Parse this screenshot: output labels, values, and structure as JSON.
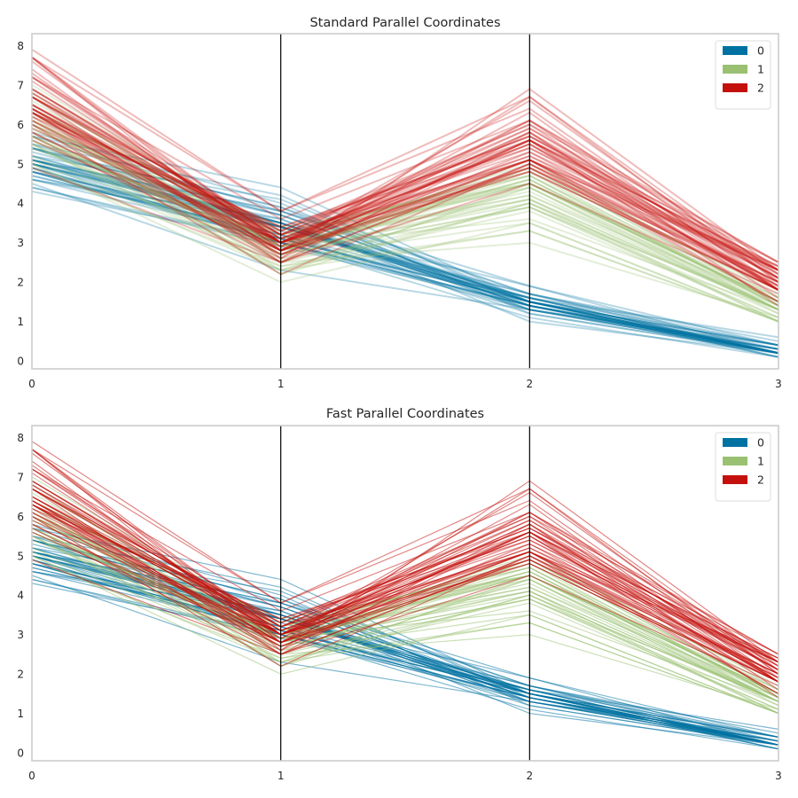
{
  "chart_data": [
    {
      "type": "parallel-coordinates",
      "title": "Standard Parallel Coordinates",
      "axes": [
        "0",
        "1",
        "2",
        "3"
      ],
      "ylim": [
        -0.2,
        8.3
      ],
      "yticks": [
        "0",
        "1",
        "2",
        "3",
        "4",
        "5",
        "6",
        "7",
        "8"
      ],
      "legend_position": "top-right",
      "line_alpha": 0.28,
      "series": [
        {
          "name": "0",
          "color": "#0072a1",
          "lines": [
            [
              5.1,
              3.5,
              1.4,
              0.2
            ],
            [
              4.9,
              3.0,
              1.4,
              0.2
            ],
            [
              4.7,
              3.2,
              1.3,
              0.2
            ],
            [
              4.6,
              3.1,
              1.5,
              0.2
            ],
            [
              5.0,
              3.6,
              1.4,
              0.2
            ],
            [
              5.4,
              3.9,
              1.7,
              0.4
            ],
            [
              4.6,
              3.4,
              1.4,
              0.3
            ],
            [
              5.0,
              3.4,
              1.5,
              0.2
            ],
            [
              4.4,
              2.9,
              1.4,
              0.2
            ],
            [
              4.9,
              3.1,
              1.5,
              0.1
            ],
            [
              5.4,
              3.7,
              1.5,
              0.2
            ],
            [
              4.8,
              3.4,
              1.6,
              0.2
            ],
            [
              4.8,
              3.0,
              1.4,
              0.1
            ],
            [
              4.3,
              3.0,
              1.1,
              0.1
            ],
            [
              5.8,
              4.0,
              1.2,
              0.2
            ],
            [
              5.7,
              4.4,
              1.5,
              0.4
            ],
            [
              5.4,
              3.9,
              1.3,
              0.4
            ],
            [
              5.1,
              3.5,
              1.4,
              0.3
            ],
            [
              5.7,
              3.8,
              1.7,
              0.3
            ],
            [
              5.1,
              3.8,
              1.5,
              0.3
            ],
            [
              5.4,
              3.4,
              1.7,
              0.2
            ],
            [
              5.1,
              3.7,
              1.5,
              0.4
            ],
            [
              4.6,
              3.6,
              1.0,
              0.2
            ],
            [
              5.1,
              3.3,
              1.7,
              0.5
            ],
            [
              4.8,
              3.4,
              1.9,
              0.2
            ],
            [
              5.0,
              3.0,
              1.6,
              0.2
            ],
            [
              5.0,
              3.4,
              1.6,
              0.4
            ],
            [
              5.2,
              3.5,
              1.5,
              0.2
            ],
            [
              5.2,
              3.4,
              1.4,
              0.2
            ],
            [
              4.7,
              3.2,
              1.6,
              0.2
            ],
            [
              4.8,
              3.1,
              1.6,
              0.2
            ],
            [
              5.4,
              3.4,
              1.5,
              0.4
            ],
            [
              5.2,
              4.1,
              1.5,
              0.1
            ],
            [
              5.5,
              4.2,
              1.4,
              0.2
            ],
            [
              4.9,
              3.1,
              1.5,
              0.2
            ],
            [
              5.0,
              3.2,
              1.2,
              0.2
            ],
            [
              5.5,
              3.5,
              1.3,
              0.2
            ],
            [
              4.4,
              3.0,
              1.3,
              0.2
            ],
            [
              5.1,
              3.4,
              1.5,
              0.2
            ],
            [
              5.0,
              3.5,
              1.3,
              0.3
            ],
            [
              4.5,
              2.3,
              1.3,
              0.3
            ],
            [
              5.0,
              3.5,
              1.6,
              0.6
            ],
            [
              5.1,
              3.8,
              1.9,
              0.4
            ],
            [
              4.8,
              3.0,
              1.4,
              0.3
            ],
            [
              5.3,
              3.7,
              1.5,
              0.2
            ]
          ]
        },
        {
          "name": "1",
          "color": "#9ac172",
          "lines": [
            [
              7.0,
              3.2,
              4.7,
              1.4
            ],
            [
              6.4,
              3.2,
              4.5,
              1.5
            ],
            [
              6.9,
              3.1,
              4.9,
              1.5
            ],
            [
              5.5,
              2.3,
              4.0,
              1.3
            ],
            [
              6.5,
              2.8,
              4.6,
              1.5
            ],
            [
              5.7,
              2.8,
              4.5,
              1.3
            ],
            [
              6.3,
              3.3,
              4.7,
              1.6
            ],
            [
              4.9,
              2.4,
              3.3,
              1.0
            ],
            [
              6.6,
              2.9,
              4.6,
              1.3
            ],
            [
              5.2,
              2.7,
              3.9,
              1.4
            ],
            [
              5.0,
              2.0,
              3.5,
              1.0
            ],
            [
              5.9,
              3.0,
              4.2,
              1.5
            ],
            [
              6.0,
              2.2,
              4.0,
              1.0
            ],
            [
              6.1,
              2.9,
              4.7,
              1.4
            ],
            [
              5.6,
              2.9,
              3.6,
              1.3
            ],
            [
              6.7,
              3.1,
              4.4,
              1.4
            ],
            [
              5.8,
              2.7,
              4.1,
              1.0
            ],
            [
              6.2,
              2.2,
              4.5,
              1.5
            ],
            [
              5.6,
              2.5,
              3.9,
              1.1
            ],
            [
              5.9,
              3.2,
              4.8,
              1.8
            ],
            [
              6.1,
              2.8,
              4.0,
              1.3
            ],
            [
              6.3,
              2.5,
              4.9,
              1.5
            ],
            [
              6.4,
              2.9,
              4.3,
              1.3
            ],
            [
              6.8,
              2.8,
              4.8,
              1.4
            ],
            [
              6.7,
              3.0,
              5.0,
              1.7
            ],
            [
              6.0,
              2.9,
              4.5,
              1.5
            ],
            [
              5.7,
              2.6,
              3.5,
              1.0
            ],
            [
              5.5,
              2.4,
              3.8,
              1.1
            ],
            [
              5.8,
              2.7,
              3.9,
              1.2
            ],
            [
              6.0,
              2.7,
              5.1,
              1.6
            ],
            [
              5.4,
              3.0,
              4.5,
              1.5
            ],
            [
              6.0,
              3.4,
              4.5,
              1.6
            ],
            [
              6.3,
              2.3,
              4.4,
              1.3
            ],
            [
              5.6,
              3.0,
              4.1,
              1.3
            ],
            [
              5.5,
              2.6,
              4.4,
              1.2
            ],
            [
              6.1,
              3.0,
              4.6,
              1.4
            ],
            [
              5.0,
              2.3,
              3.3,
              1.0
            ],
            [
              5.7,
              2.9,
              4.2,
              1.3
            ],
            [
              5.1,
              2.5,
              3.0,
              1.1
            ],
            [
              5.7,
              2.8,
              4.1,
              1.3
            ]
          ]
        },
        {
          "name": "2",
          "color": "#c4100c",
          "lines": [
            [
              6.3,
              3.3,
              6.0,
              2.5
            ],
            [
              5.8,
              2.7,
              5.1,
              1.9
            ],
            [
              7.1,
              3.0,
              5.9,
              2.1
            ],
            [
              6.3,
              2.9,
              5.6,
              1.8
            ],
            [
              6.5,
              3.0,
              5.8,
              2.2
            ],
            [
              7.6,
              3.0,
              6.6,
              2.1
            ],
            [
              4.9,
              2.5,
              4.5,
              1.7
            ],
            [
              7.3,
              2.9,
              6.3,
              1.8
            ],
            [
              6.7,
              2.5,
              5.8,
              1.8
            ],
            [
              7.2,
              3.6,
              6.1,
              2.5
            ],
            [
              6.5,
              3.2,
              5.1,
              2.0
            ],
            [
              6.4,
              2.7,
              5.3,
              1.9
            ],
            [
              6.8,
              3.0,
              5.5,
              2.1
            ],
            [
              5.7,
              2.5,
              5.0,
              2.0
            ],
            [
              5.8,
              2.8,
              5.1,
              2.4
            ],
            [
              6.4,
              3.2,
              5.3,
              2.3
            ],
            [
              6.5,
              3.0,
              5.5,
              1.8
            ],
            [
              7.7,
              3.8,
              6.7,
              2.2
            ],
            [
              7.7,
              2.6,
              6.9,
              2.3
            ],
            [
              6.0,
              2.2,
              5.0,
              1.5
            ],
            [
              6.9,
              3.2,
              5.7,
              2.3
            ],
            [
              5.6,
              2.8,
              4.9,
              2.0
            ],
            [
              7.7,
              2.8,
              6.7,
              2.0
            ],
            [
              6.3,
              2.7,
              4.9,
              1.8
            ],
            [
              6.7,
              3.3,
              5.7,
              2.1
            ],
            [
              7.2,
              3.2,
              6.0,
              1.8
            ],
            [
              6.2,
              2.8,
              4.8,
              1.8
            ],
            [
              6.1,
              3.0,
              4.9,
              1.8
            ],
            [
              6.4,
              2.8,
              5.6,
              2.1
            ],
            [
              7.2,
              3.0,
              5.8,
              1.6
            ],
            [
              7.4,
              2.8,
              6.1,
              1.9
            ],
            [
              7.9,
              3.8,
              6.4,
              2.0
            ],
            [
              6.4,
              2.8,
              5.6,
              2.2
            ],
            [
              6.3,
              2.8,
              5.1,
              1.5
            ],
            [
              6.1,
              2.6,
              5.6,
              1.4
            ],
            [
              7.7,
              3.0,
              6.1,
              2.3
            ],
            [
              6.3,
              3.4,
              5.6,
              2.4
            ],
            [
              6.4,
              3.1,
              5.5,
              1.8
            ],
            [
              6.0,
              3.0,
              4.8,
              1.8
            ],
            [
              6.9,
              3.1,
              5.4,
              2.1
            ],
            [
              6.7,
              3.1,
              5.6,
              2.4
            ],
            [
              6.9,
              3.1,
              5.1,
              2.3
            ],
            [
              6.8,
              3.2,
              5.9,
              2.3
            ],
            [
              6.7,
              3.3,
              5.7,
              2.5
            ],
            [
              6.7,
              3.0,
              5.2,
              2.3
            ],
            [
              6.3,
              2.5,
              5.0,
              1.9
            ],
            [
              6.5,
              3.0,
              5.2,
              2.0
            ],
            [
              6.2,
              3.4,
              5.4,
              2.3
            ],
            [
              5.9,
              3.0,
              5.1,
              1.8
            ]
          ]
        }
      ]
    },
    {
      "type": "parallel-coordinates",
      "title": "Fast Parallel Coordinates",
      "axes": [
        "0",
        "1",
        "2",
        "3"
      ],
      "ylim": [
        -0.2,
        8.3
      ],
      "yticks": [
        "0",
        "1",
        "2",
        "3",
        "4",
        "5",
        "6",
        "7",
        "8"
      ],
      "legend_position": "top-right",
      "line_alpha": 0.5,
      "series_ref": "same as first chart"
    }
  ]
}
